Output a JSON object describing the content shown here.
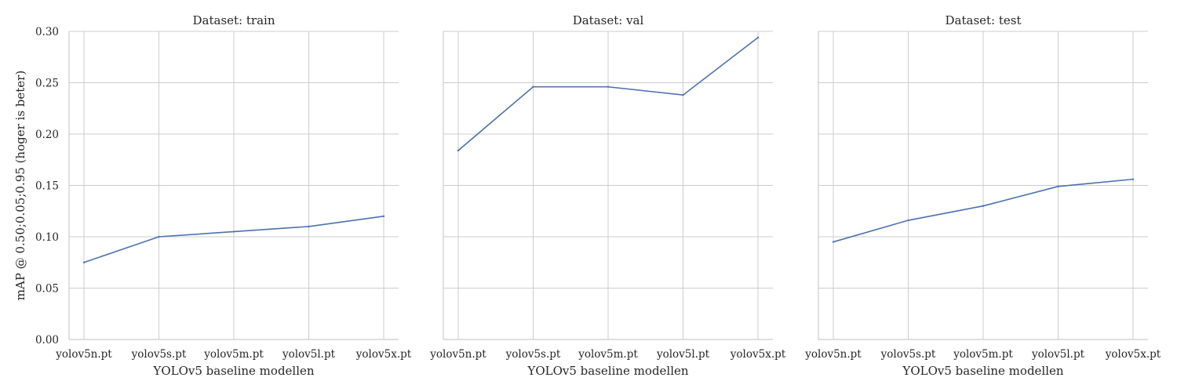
{
  "chart_data": [
    {
      "type": "line",
      "title": "Dataset: train",
      "xlabel": "YOLOv5 baseline modellen",
      "ylabel": "mAP @ 0.50;0.05;0.95 (hoger is beter)",
      "categories": [
        "yolov5n.pt",
        "yolov5s.pt",
        "yolov5m.pt",
        "yolov5l.pt",
        "yolov5x.pt"
      ],
      "values": [
        0.075,
        0.1,
        0.105,
        0.11,
        0.12
      ],
      "ylim": [
        0,
        0.3
      ],
      "yticks": [
        "0.00",
        "0.05",
        "0.10",
        "0.15",
        "0.20",
        "0.25",
        "0.30"
      ],
      "grid": true
    },
    {
      "type": "line",
      "title": "Dataset: val",
      "xlabel": "YOLOv5 baseline modellen",
      "ylabel": "",
      "categories": [
        "yolov5n.pt",
        "yolov5s.pt",
        "yolov5m.pt",
        "yolov5l.pt",
        "yolov5x.pt"
      ],
      "values": [
        0.184,
        0.246,
        0.246,
        0.238,
        0.294
      ],
      "ylim": [
        0,
        0.3
      ],
      "yticks": [],
      "grid": true
    },
    {
      "type": "line",
      "title": "Dataset: test",
      "xlabel": "YOLOv5 baseline modellen",
      "ylabel": "",
      "categories": [
        "yolov5n.pt",
        "yolov5s.pt",
        "yolov5m.pt",
        "yolov5l.pt",
        "yolov5x.pt"
      ],
      "values": [
        0.095,
        0.116,
        0.13,
        0.149,
        0.156
      ],
      "ylim": [
        0,
        0.3
      ],
      "yticks": [],
      "grid": true
    }
  ],
  "colors": {
    "line": "#4c72b0",
    "grid": "#cccccc",
    "text": "#262626"
  }
}
